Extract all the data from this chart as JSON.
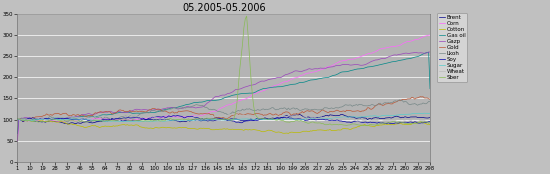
{
  "title": "05.2005-05.2006",
  "background_color": "#c0c0c0",
  "plot_bg_color": "#b8b8b8",
  "ylim": [
    0,
    350
  ],
  "yticks": [
    0,
    50,
    100,
    150,
    200,
    250,
    300,
    350
  ],
  "n_points": 298,
  "xtick_step": 9,
  "figsize": [
    5.5,
    1.74
  ],
  "dpi": 100,
  "series_names": [
    "Brent",
    "Corn",
    "Cotton",
    "Gas oil",
    "Gazp",
    "Gold",
    "Lkoh",
    "Soy",
    "Sugar",
    "Wheat",
    "Sber"
  ],
  "series_colors": [
    "#00008B",
    "#ff66ff",
    "#cccc00",
    "#00aaaa",
    "#9966cc",
    "#cc6644",
    "#669999",
    "#0000cc",
    "#66dddd",
    "#cccccc",
    "#99cc66"
  ]
}
